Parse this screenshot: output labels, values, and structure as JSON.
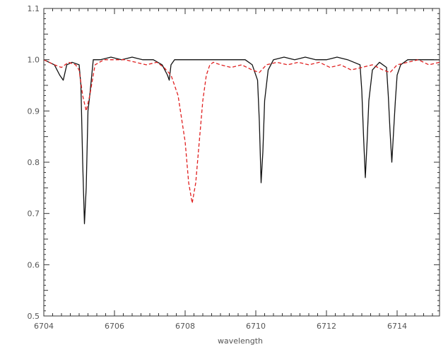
{
  "chart_data": {
    "type": "line",
    "title": "",
    "xlabel": "wavelength",
    "ylabel": "",
    "xlim": [
      6704,
      6715.2
    ],
    "ylim": [
      0.5,
      1.1
    ],
    "grid": false,
    "x_ticks": [
      6704,
      6706,
      6708,
      6710,
      6712,
      6714
    ],
    "x_tick_labels": [
      "6704",
      "6706",
      "6708",
      "6710",
      "6712",
      "6714"
    ],
    "y_ticks": [
      0.5,
      0.6,
      0.7,
      0.8,
      0.9,
      1.0,
      1.1
    ],
    "y_tick_labels": [
      "0.5",
      "0.6",
      "0.7",
      "0.8",
      "0.9",
      "1.0",
      "1.1"
    ],
    "series": [
      {
        "color": "#111111",
        "style": "solid",
        "x": [
          6704.0,
          6704.3,
          6704.45,
          6704.55,
          6704.65,
          6704.8,
          6705.0,
          6705.05,
          6705.1,
          6705.15,
          6705.2,
          6705.25,
          6705.3,
          6705.4,
          6705.6,
          6705.9,
          6706.2,
          6706.5,
          6706.8,
          6707.1,
          6707.35,
          6707.5,
          6707.55,
          6707.6,
          6707.7,
          6707.9,
          6708.2,
          6708.5,
          6708.8,
          6709.1,
          6709.4,
          6709.7,
          6709.9,
          6710.05,
          6710.1,
          6710.15,
          6710.2,
          6710.25,
          6710.35,
          6710.5,
          6710.8,
          6711.1,
          6711.4,
          6711.7,
          6712.0,
          6712.3,
          6712.6,
          6712.95,
          6713.0,
          6713.05,
          6713.1,
          6713.15,
          6713.2,
          6713.3,
          6713.5,
          6713.7,
          6713.75,
          6713.8,
          6713.85,
          6713.9,
          6713.95,
          6714.0,
          6714.1,
          6714.3,
          6714.6,
          6714.9,
          6715.2
        ],
        "y": [
          1.0,
          0.99,
          0.97,
          0.96,
          0.99,
          0.995,
          0.99,
          0.95,
          0.8,
          0.68,
          0.75,
          0.9,
          0.93,
          1.0,
          1.0,
          1.005,
          1.0,
          1.005,
          1.0,
          1.0,
          0.99,
          0.97,
          0.96,
          0.99,
          1.0,
          1.0,
          1.0,
          1.0,
          1.0,
          1.0,
          1.0,
          1.0,
          0.99,
          0.96,
          0.88,
          0.76,
          0.82,
          0.92,
          0.98,
          1.0,
          1.005,
          1.0,
          1.005,
          1.0,
          1.0,
          1.005,
          1.0,
          0.99,
          0.94,
          0.85,
          0.77,
          0.84,
          0.92,
          0.98,
          0.995,
          0.985,
          0.93,
          0.86,
          0.8,
          0.86,
          0.92,
          0.97,
          0.99,
          1.0,
          1.0,
          1.0,
          1.0
        ]
      },
      {
        "color": "#e02020",
        "style": "dashed",
        "x": [
          6704.0,
          6704.3,
          6704.5,
          6704.7,
          6704.9,
          6705.0,
          6705.1,
          6705.2,
          6705.3,
          6705.45,
          6705.7,
          6706.0,
          6706.3,
          6706.6,
          6706.9,
          6707.2,
          6707.4,
          6707.6,
          6707.8,
          6708.0,
          6708.1,
          6708.2,
          6708.3,
          6708.4,
          6708.5,
          6708.6,
          6708.7,
          6708.8,
          6709.0,
          6709.3,
          6709.6,
          6709.9,
          6710.1,
          6710.3,
          6710.6,
          6710.9,
          6711.2,
          6711.5,
          6711.8,
          6712.1,
          6712.4,
          6712.7,
          6713.0,
          6713.3,
          6713.6,
          6713.8,
          6714.0,
          6714.3,
          6714.6,
          6714.9,
          6715.2
        ],
        "y": [
          1.0,
          0.99,
          0.985,
          0.995,
          0.99,
          0.98,
          0.93,
          0.9,
          0.93,
          0.99,
          1.0,
          1.0,
          1.0,
          0.995,
          0.99,
          0.995,
          0.985,
          0.97,
          0.93,
          0.84,
          0.76,
          0.72,
          0.76,
          0.84,
          0.92,
          0.97,
          0.99,
          0.995,
          0.99,
          0.985,
          0.99,
          0.98,
          0.975,
          0.99,
          0.995,
          0.99,
          0.995,
          0.99,
          0.995,
          0.985,
          0.99,
          0.98,
          0.985,
          0.99,
          0.98,
          0.975,
          0.99,
          0.995,
          1.0,
          0.99,
          0.995
        ]
      }
    ]
  }
}
